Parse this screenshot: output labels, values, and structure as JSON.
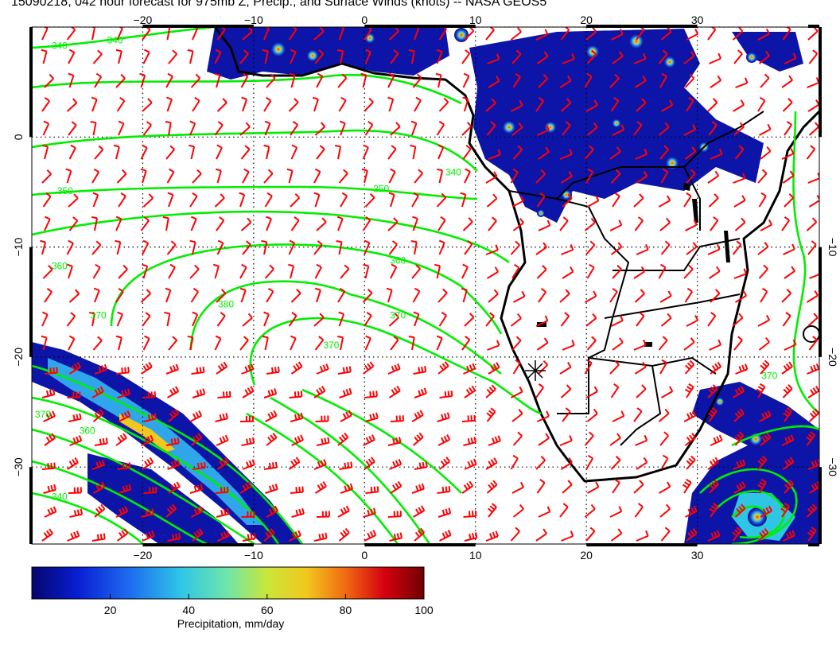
{
  "title": "15090218, 042 hour forecast for 975mb Z, Precip., and Surface Winds (knots) -- NASA GEOS5",
  "map": {
    "lon_range": [
      -30,
      41
    ],
    "lat_range": [
      -37,
      10
    ],
    "top_axis_ticks": [
      {
        "lon": -20,
        "label": "−20"
      },
      {
        "lon": -10,
        "label": "−10"
      },
      {
        "lon": 0,
        "label": "0"
      },
      {
        "lon": 10,
        "label": "10"
      },
      {
        "lon": 20,
        "label": "20"
      },
      {
        "lon": 30,
        "label": "30"
      }
    ],
    "bottom_axis_ticks": [
      {
        "lon": -20,
        "label": "−20"
      },
      {
        "lon": -10,
        "label": "−10"
      },
      {
        "lon": 0,
        "label": "0"
      },
      {
        "lon": 10,
        "label": "10"
      },
      {
        "lon": 20,
        "label": "20"
      },
      {
        "lon": 30,
        "label": "30"
      }
    ],
    "left_axis_ticks": [
      {
        "lat": 0,
        "label": "0"
      },
      {
        "lat": -10,
        "label": "−10"
      },
      {
        "lat": -20,
        "label": "−20"
      },
      {
        "lat": -30,
        "label": "−30"
      }
    ],
    "right_axis_ticks": [
      {
        "lat": -10,
        "label": "−10"
      },
      {
        "lat": -20,
        "label": "−20"
      },
      {
        "lat": -30,
        "label": "−30"
      }
    ],
    "contour_labels": [
      {
        "text": "340",
        "lon": -27.5,
        "lat": 8
      },
      {
        "text": "340",
        "lon": -22.5,
        "lat": 8.5
      },
      {
        "text": "340",
        "lon": 8,
        "lat": -3.5
      },
      {
        "text": "350",
        "lon": -27,
        "lat": -5.2
      },
      {
        "text": "350",
        "lon": 1.5,
        "lat": -5
      },
      {
        "text": "360",
        "lon": -27.5,
        "lat": -12
      },
      {
        "text": "360",
        "lon": 3,
        "lat": -11.5
      },
      {
        "text": "370",
        "lon": -24,
        "lat": -16.5
      },
      {
        "text": "370",
        "lon": 3,
        "lat": -16.5
      },
      {
        "text": "380",
        "lon": -12.5,
        "lat": -15.5
      },
      {
        "text": "370",
        "lon": -3,
        "lat": -19.2
      },
      {
        "text": "370",
        "lon": -29,
        "lat": -25.5
      },
      {
        "text": "360",
        "lon": -25,
        "lat": -27
      },
      {
        "text": "340",
        "lon": -27.5,
        "lat": -33
      },
      {
        "text": "370",
        "lon": 36.5,
        "lat": -22
      }
    ],
    "marker_label": "*",
    "colors": {
      "contour": "#00ee00",
      "barb": "#ff0000",
      "coast": "#000000",
      "grid": "#000000",
      "precip_low": "#08087a",
      "precip_high": "#7a0000"
    }
  },
  "colorbar": {
    "min": 0,
    "max": 100,
    "ticks": [
      {
        "value": 20,
        "label": "20"
      },
      {
        "value": 40,
        "label": "40"
      },
      {
        "value": 60,
        "label": "60"
      },
      {
        "value": 80,
        "label": "80"
      },
      {
        "value": 100,
        "label": "100"
      }
    ],
    "label": "Precipitation, mm/day"
  }
}
